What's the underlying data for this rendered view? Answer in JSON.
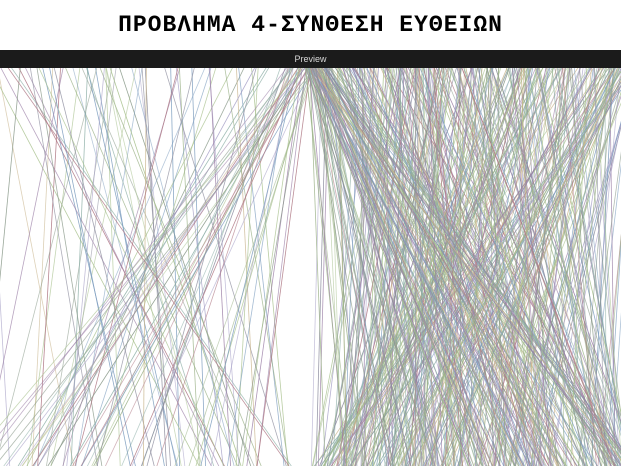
{
  "slide": {
    "title": "ΠΡΟΒΛΗΜΑ 4-ΣΥΝΘΕΣΗ ΕΥΘΕΙΩΝ"
  },
  "preview_panel": {
    "label": "Preview"
  },
  "colors": {
    "title_text": "#000000",
    "bar_background": "#1b1b1b",
    "bar_text": "#d8d8d8",
    "canvas_background": "#ffffff",
    "line_palette": [
      "#8a9a8a",
      "#9b7fa6",
      "#7f9fc0",
      "#a9c28f",
      "#b07a86",
      "#8fb0a8",
      "#a8a2c8",
      "#c8b48c",
      "#9db38a",
      "#8d8d9e"
    ]
  }
}
